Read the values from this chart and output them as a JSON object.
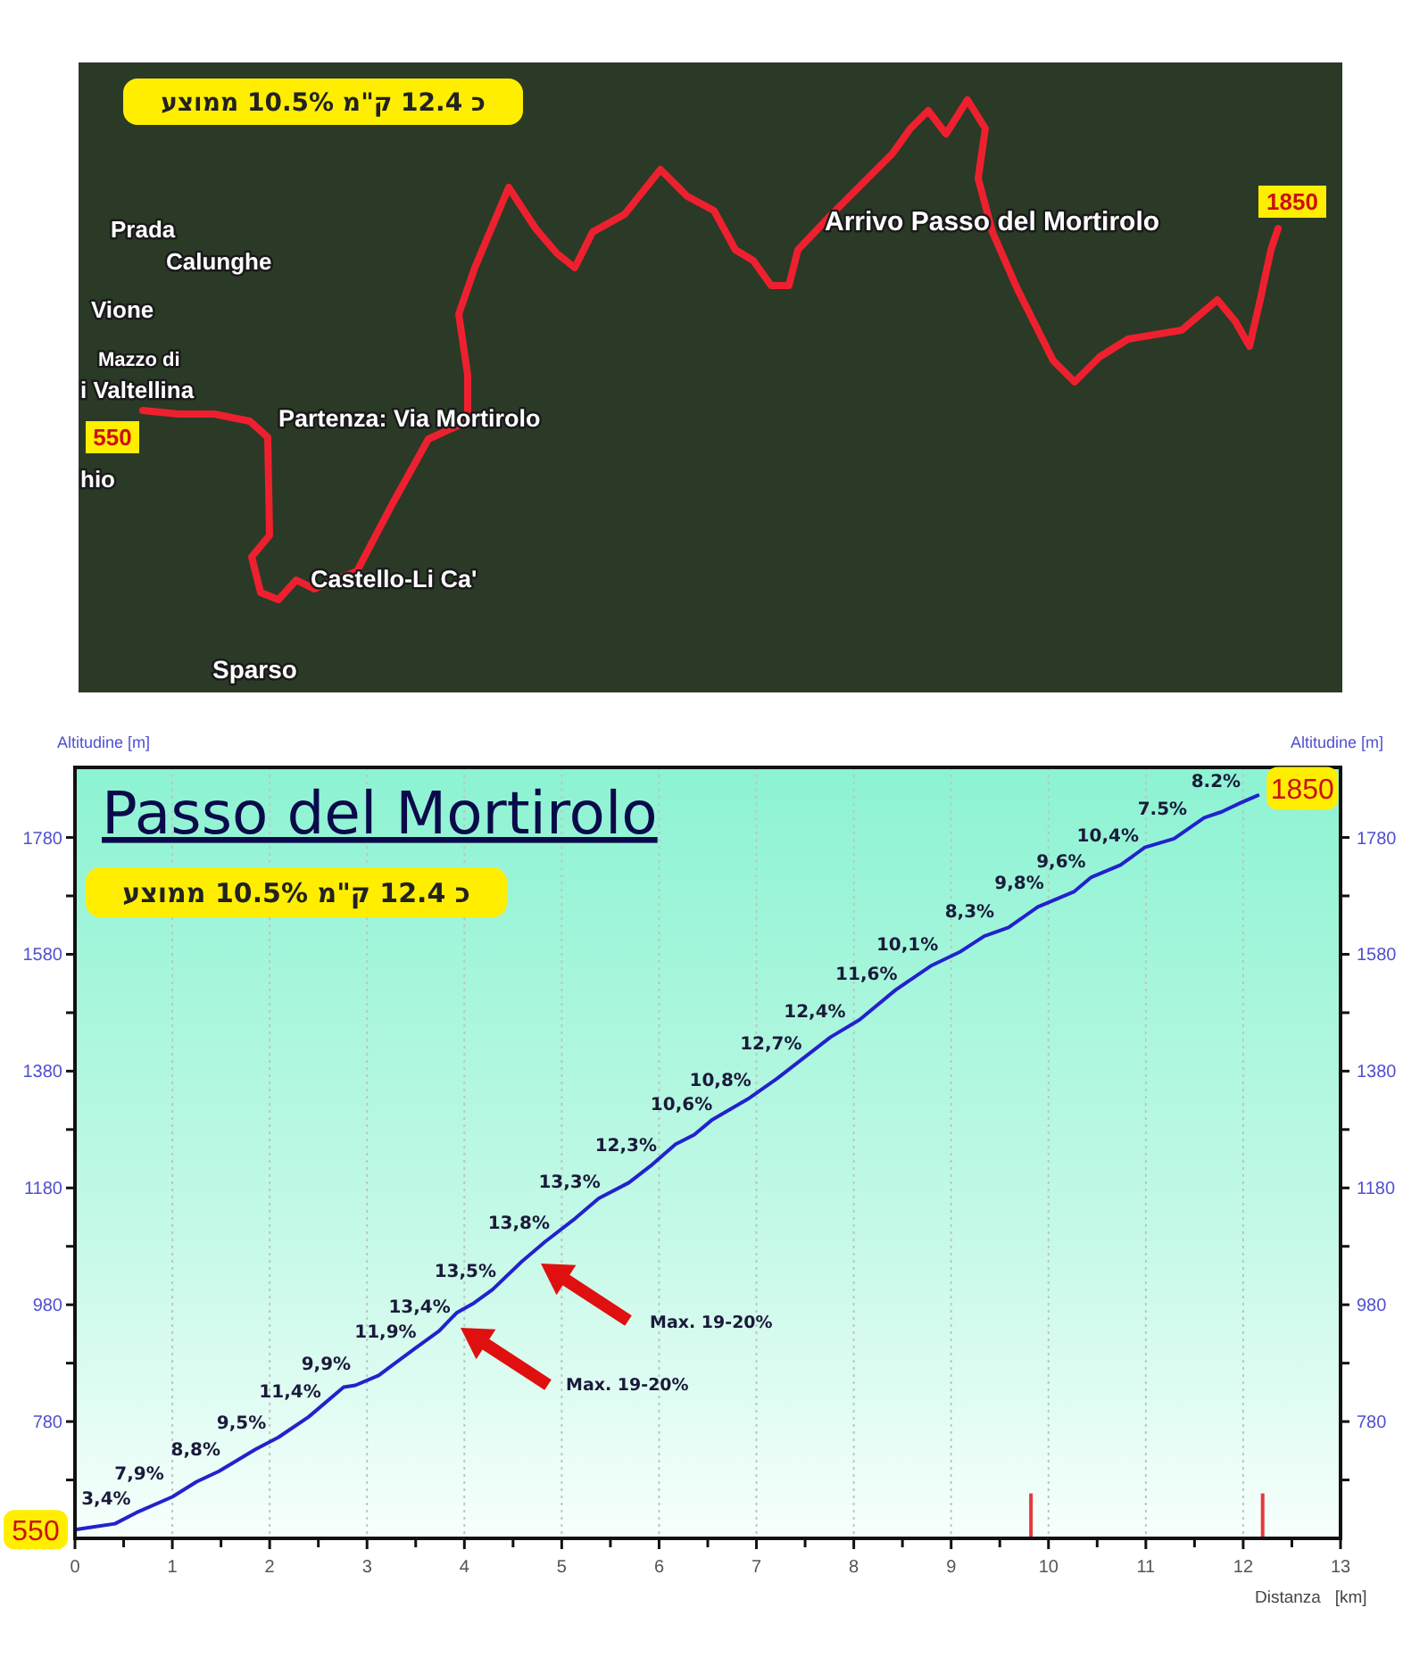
{
  "chart_data": {
    "type": "line",
    "title": "Passo del Mortirolo",
    "xlabel": "Distanza   [km]",
    "ylabel": "Altitudine [m]",
    "y2label": "Altitudine [m]",
    "x": [
      0,
      0.2,
      0.41,
      0.63,
      1.0,
      1.25,
      1.48,
      1.85,
      2.09,
      2.4,
      2.76,
      2.88,
      3.12,
      3.49,
      3.74,
      3.92,
      4.1,
      4.29,
      4.59,
      4.83,
      5.14,
      5.38,
      5.69,
      5.93,
      6.17,
      6.36,
      6.54,
      6.91,
      7.21,
      7.76,
      8.06,
      8.43,
      8.79,
      9.1,
      9.34,
      9.59,
      9.89,
      10.26,
      10.44,
      10.74,
      10.99,
      11.29,
      11.6,
      11.78,
      11.97,
      12.15
    ],
    "series": [
      {
        "color": "#2222cc",
        "values": [
          595,
          600,
          605,
          624,
          651,
          677,
          695,
          732,
          753,
          788,
          839,
          842,
          859,
          905,
          935,
          966,
          983,
          1006,
          1054,
          1088,
          1128,
          1162,
          1189,
          1220,
          1255,
          1271,
          1296,
          1332,
          1367,
          1438,
          1468,
          1519,
          1560,
          1585,
          1611,
          1626,
          1661,
          1687,
          1712,
          1733,
          1763,
          1778,
          1814,
          1824,
          1839,
          1852
        ]
      },
      {
        "type": "bar",
        "color": "#e8383d",
        "x": [
          9.82,
          12.2
        ],
        "base": [
          580,
          580
        ],
        "values": [
          77,
          77
        ]
      }
    ],
    "xlim": [
      0,
      13
    ],
    "xticks": [
      0,
      {
        "value": 0.5,
        "label": null
      },
      1,
      {
        "value": 1.5,
        "label": null
      },
      2,
      {
        "value": 2.5,
        "label": null
      },
      3,
      {
        "value": 3.5,
        "label": null
      },
      4,
      {
        "value": 4.5,
        "label": null
      },
      5,
      {
        "value": 5.5,
        "label": null
      },
      6,
      {
        "value": 6.5,
        "label": null
      },
      7,
      {
        "value": 7.5,
        "label": null
      },
      8,
      {
        "value": 8.5,
        "label": null
      },
      9,
      {
        "value": 9.5,
        "label": null
      },
      10,
      {
        "value": 10.5,
        "label": null
      },
      11,
      {
        "value": 11.5,
        "label": null
      },
      12,
      {
        "value": 12.5,
        "label": null
      },
      13
    ],
    "ylim": [
      580,
      1900
    ],
    "yticks": [
      {
        "value": 680,
        "label": null
      },
      780,
      {
        "value": 880,
        "label": null
      },
      980,
      {
        "value": 1080,
        "label": null
      },
      1180,
      {
        "value": 1280,
        "label": null
      },
      1380,
      {
        "value": 1480,
        "label": null
      },
      1580,
      {
        "value": 1680,
        "label": null
      },
      1780
    ],
    "y2lim": [
      580,
      1900
    ],
    "y2ticks": [
      {
        "value": 680,
        "label": null
      },
      780,
      {
        "value": 880,
        "label": null
      },
      980,
      {
        "value": 1080,
        "label": null
      },
      1180,
      {
        "value": 1280,
        "label": null
      },
      1380,
      {
        "value": 1480,
        "label": null
      },
      1580,
      {
        "value": 1680,
        "label": null
      },
      1780
    ],
    "grid": "x",
    "annotations": [
      "כ 12.4 ק\"מ 10.5% ממוצע",
      "Max. 19-20%",
      "Max. 19-20%",
      {
        "text": "550",
        "x": 0,
        "y": 595
      },
      {
        "text": "3,4%",
        "x": 0.54,
        "y": 610
      },
      {
        "text": "7,9%",
        "x": 0.88,
        "y": 652
      },
      {
        "text": "8,8%",
        "x": 1.46,
        "y": 693
      },
      {
        "text": "9,5%",
        "x": 1.93,
        "y": 739
      },
      {
        "text": "11,4%",
        "x": 2.43,
        "y": 792
      },
      {
        "text": "9,9%",
        "x": 2.8,
        "y": 840
      },
      {
        "text": "11,9%",
        "x": 3.41,
        "y": 895
      },
      {
        "text": "13,4%",
        "x": 3.76,
        "y": 938
      },
      {
        "text": "13,5%",
        "x": 4.23,
        "y": 999
      },
      {
        "text": "13,8%",
        "x": 4.78,
        "y": 1081
      },
      {
        "text": "13,3%",
        "x": 5.3,
        "y": 1151
      },
      {
        "text": "12,3%",
        "x": 5.88,
        "y": 1214
      },
      {
        "text": "10,6%",
        "x": 6.45,
        "y": 1284
      },
      {
        "text": "10,8%",
        "x": 6.85,
        "y": 1326
      },
      {
        "text": "12,7%",
        "x": 7.37,
        "y": 1388
      },
      {
        "text": "12,4%",
        "x": 7.82,
        "y": 1444
      },
      {
        "text": "11,6%",
        "x": 8.35,
        "y": 1508
      },
      {
        "text": "10,1%",
        "x": 8.77,
        "y": 1558
      },
      {
        "text": "8,3%",
        "x": 9.41,
        "y": 1615
      },
      {
        "text": "9,8%",
        "x": 9.92,
        "y": 1663
      },
      {
        "text": "9,6%",
        "x": 10.35,
        "y": 1700
      },
      {
        "text": "10,4%",
        "x": 10.83,
        "y": 1744
      },
      {
        "text": "7.5%",
        "x": 11.39,
        "y": 1790
      },
      {
        "text": "8.2%",
        "x": 11.94,
        "y": 1837
      },
      {
        "text": "1850",
        "x": 12.15,
        "y": 1852
      },
      "כ 12.4 ק\"מ 10.5% ממוצע",
      "Prada",
      "Calunghe",
      "Vione",
      "Mazzo di",
      "i Valtellina",
      "hio",
      "Partenza: Via Mortirolo",
      "Castello-Li Ca'",
      "Sparso",
      "Arrivo Passo del Mortirolo",
      "550",
      "1850"
    ]
  }
}
